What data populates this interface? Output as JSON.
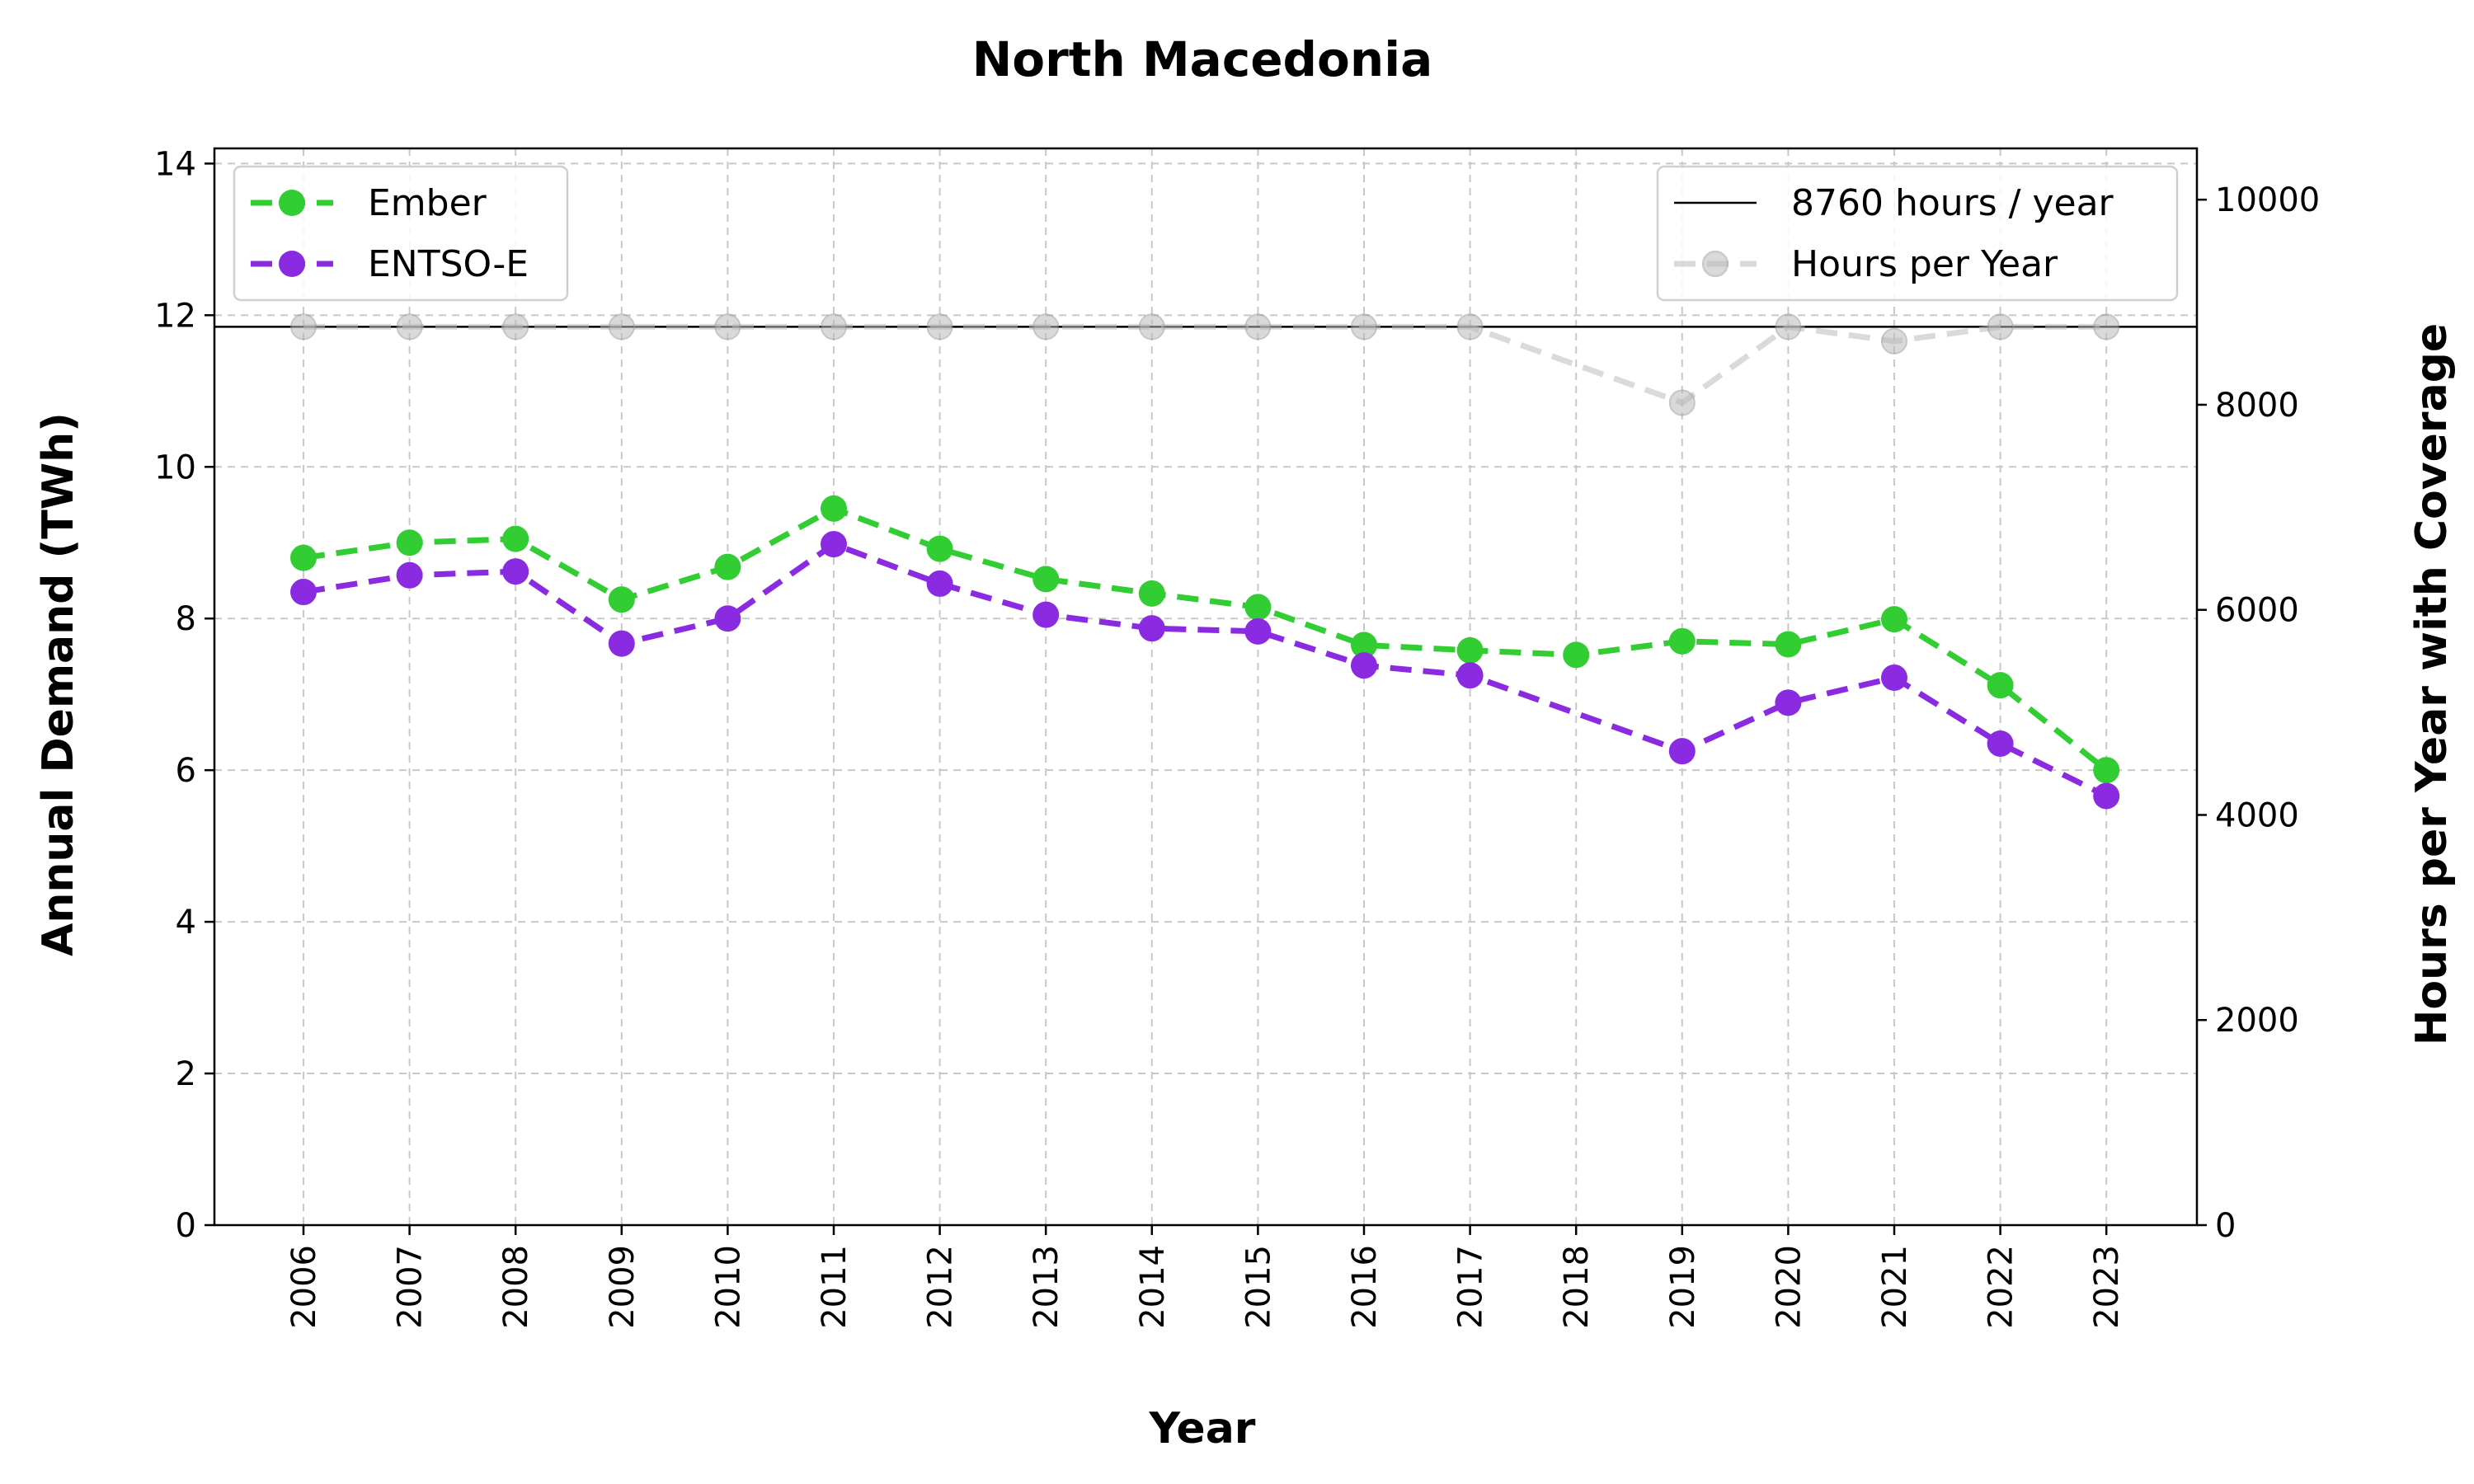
{
  "chart_data": {
    "type": "line",
    "title": "North Macedonia",
    "xlabel": "Year",
    "ylabel": "Annual Demand (TWh)",
    "y2label": "Hours per Year with Coverage",
    "categories": [
      "2006",
      "2007",
      "2008",
      "2009",
      "2010",
      "2011",
      "2012",
      "2013",
      "2014",
      "2015",
      "2016",
      "2017",
      "2018",
      "2019",
      "2020",
      "2021",
      "2022",
      "2023"
    ],
    "ylim": [
      0,
      14.2
    ],
    "yticks": [
      0,
      2,
      4,
      6,
      8,
      10,
      12,
      14
    ],
    "y2lim": [
      0,
      10500
    ],
    "y2ticks": [
      0,
      2000,
      4000,
      6000,
      8000,
      10000
    ],
    "grid": true,
    "series": [
      {
        "name": "Ember",
        "axis": "left",
        "color": "#32cd32",
        "values": [
          8.8,
          9.0,
          9.05,
          8.25,
          8.68,
          9.45,
          8.92,
          8.52,
          8.33,
          8.15,
          7.65,
          7.58,
          7.52,
          7.7,
          7.66,
          7.99,
          7.12,
          6.0
        ]
      },
      {
        "name": "ENTSO-E",
        "axis": "left",
        "color": "#8a2be2",
        "values": [
          8.35,
          8.57,
          8.62,
          7.67,
          8.0,
          8.98,
          8.46,
          8.05,
          7.87,
          7.83,
          7.38,
          7.25,
          null,
          6.25,
          6.89,
          7.22,
          6.35,
          5.66
        ]
      },
      {
        "name": "Hours per Year",
        "axis": "right",
        "color": "#bbbbbb",
        "values": [
          8760,
          8760,
          8760,
          8760,
          8760,
          8760,
          8760,
          8760,
          8760,
          8760,
          8760,
          8760,
          null,
          8020,
          8760,
          8620,
          8760,
          8760
        ]
      }
    ],
    "reference_line": {
      "name": "8760 hours / year",
      "axis": "right",
      "value": 8760,
      "color": "#000000"
    },
    "legend_left": {
      "placement": "upper-left",
      "entries": [
        "Ember",
        "ENTSO-E"
      ]
    },
    "legend_right": {
      "placement": "upper-right",
      "entries": [
        "8760 hours / year",
        "Hours per Year"
      ]
    }
  }
}
